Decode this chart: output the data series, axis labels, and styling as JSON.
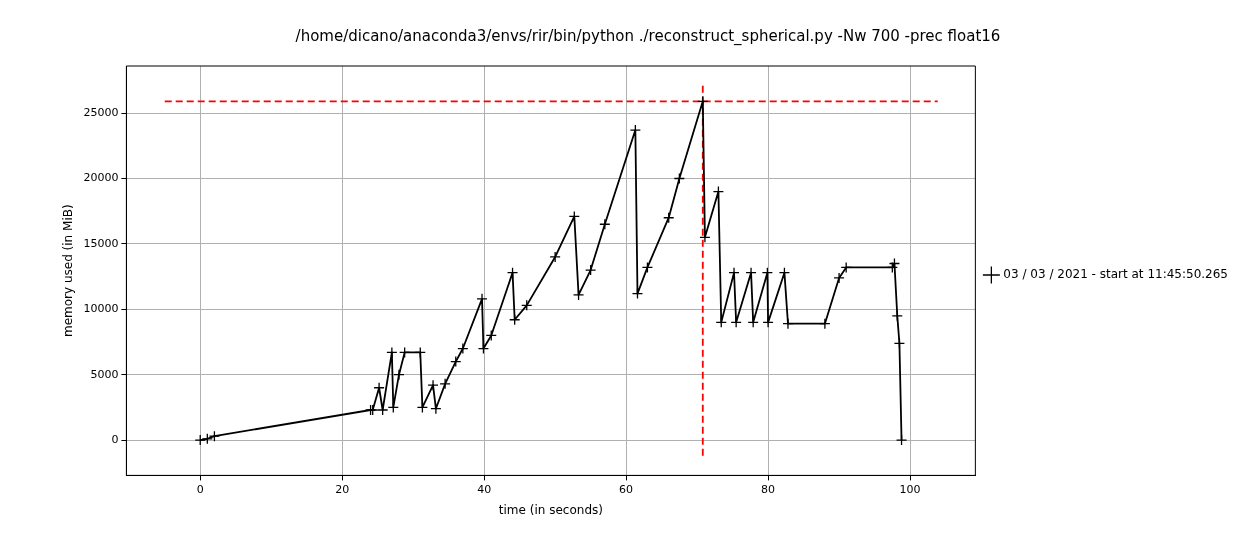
{
  "chart_data": {
    "type": "line",
    "title": "/home/dicano/anaconda3/envs/rir/bin/python ./reconstruct_spherical.py -Nw 700 -prec float16",
    "xlabel": "time (in seconds)",
    "ylabel": "memory used (in MiB)",
    "xlim": [
      -10.4,
      109.2
    ],
    "ylim": [
      -2700,
      28600
    ],
    "xticks": [
      0,
      20,
      40,
      60,
      80,
      100
    ],
    "yticks": [
      0,
      5000,
      10000,
      15000,
      20000,
      25000
    ],
    "grid": true,
    "legend": "right",
    "series": [
      {
        "name": "03 / 03 / 2021 - start at 11:45:50.265",
        "color": "#000000",
        "marker": "cross",
        "line_style": "solid",
        "x": [
          0,
          1,
          2,
          24,
          24.3,
          25.2,
          25.7,
          27,
          27.2,
          28,
          28.8,
          31,
          31.3,
          32.8,
          33.2,
          34.5,
          36,
          37,
          39.7,
          39.9,
          41,
          44,
          44.3,
          46,
          50,
          52.7,
          53.3,
          55,
          57,
          61.3,
          61.6,
          63,
          66,
          67.5,
          70.8,
          71.1,
          73,
          73.4,
          75.2,
          75.5,
          77.6,
          77.9,
          79.9,
          80,
          82.3,
          82.8,
          88,
          90,
          91,
          97.5,
          97.8,
          98.2,
          98.5,
          98.8
        ],
        "values": [
          0,
          100,
          300,
          2300,
          2300,
          4000,
          2300,
          6700,
          2500,
          5000,
          6700,
          6700,
          2500,
          4200,
          2400,
          4300,
          6000,
          7000,
          10800,
          7000,
          8000,
          12800,
          9200,
          10300,
          14000,
          17100,
          11100,
          13000,
          16500,
          23700,
          11200,
          13200,
          17000,
          20000,
          25900,
          15500,
          19000,
          9000,
          12800,
          9000,
          12800,
          9000,
          12800,
          9000,
          12800,
          8900,
          8900,
          12400,
          13200,
          13200,
          13500,
          9500,
          7400,
          0
        ]
      },
      {
        "color": "#ff0000",
        "marker": "none",
        "line_style": "dashed",
        "x": [
          -5,
          103.9
        ],
        "values": [
          25900,
          25900
        ]
      },
      {
        "color": "#ff0000",
        "marker": "none",
        "line_style": "dashed",
        "x": [
          70.8,
          70.8
        ],
        "values": [
          -1200,
          27200
        ]
      }
    ]
  }
}
